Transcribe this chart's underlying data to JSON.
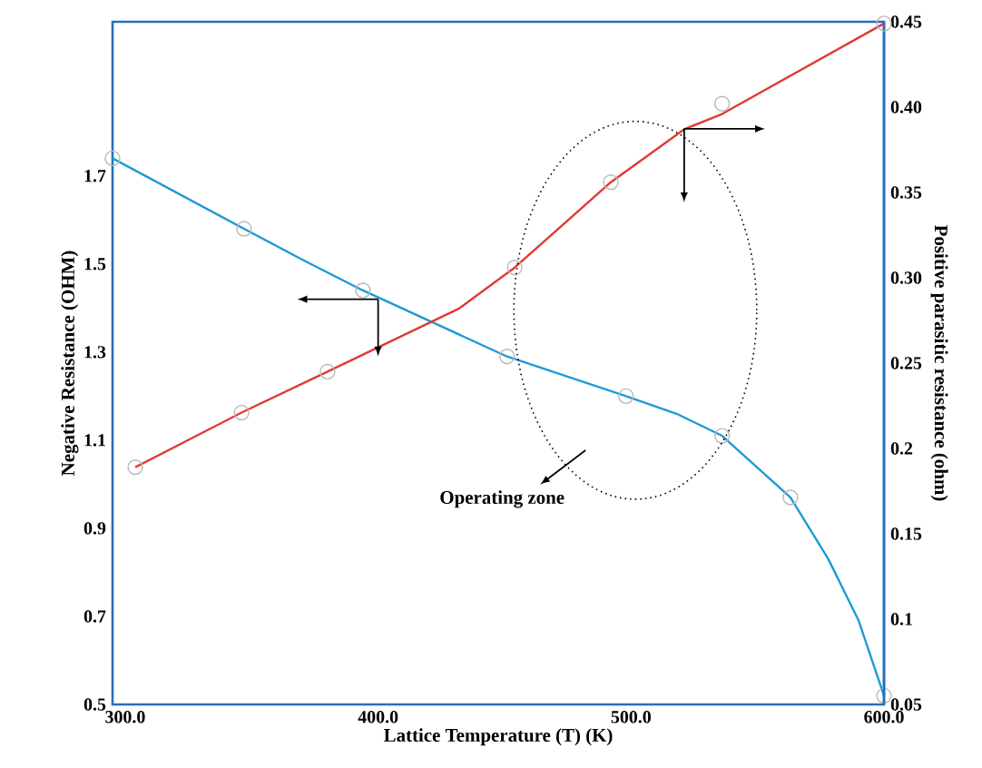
{
  "chart_data": {
    "type": "line",
    "xlabel": "Lattice Temperature (T) (K)",
    "ylabel": "Negative Resistance (OHM)",
    "y2label": "Positive parasitic resistance (ohm)",
    "annotations": [
      "Operating zone"
    ],
    "xlim": [
      295,
      600
    ],
    "xticks": [
      {
        "value": 300,
        "label": "300.0"
      },
      {
        "value": 400,
        "label": "400.0"
      },
      {
        "value": 500,
        "label": "500.0"
      },
      {
        "value": 600,
        "label": "600.0"
      }
    ],
    "ylim": [
      0.5,
      2.05
    ],
    "yticks": [
      0.5,
      0.7,
      0.9,
      1.1,
      1.3,
      1.5,
      1.7
    ],
    "y2lim": [
      0.05,
      0.45
    ],
    "y2ticks": [
      0.05,
      0.1,
      0.15,
      0.2,
      0.25,
      {
        "value": 0.3,
        "label": "0.30"
      },
      0.35,
      {
        "value": 0.4,
        "label": "0.40"
      },
      0.45
    ],
    "grid": false,
    "marker": "none",
    "series": [
      {
        "axis": "y",
        "color": "#1e9ad6",
        "x": [
          295,
          347,
          370,
          394,
          451,
          498,
          518,
          536,
          563,
          578,
          590,
          600
        ],
        "values": [
          1.74,
          1.58,
          1.51,
          1.44,
          1.29,
          1.2,
          1.16,
          1.11,
          0.97,
          0.83,
          0.69,
          0.52
        ]
      },
      {
        "axis": "y2",
        "color": "#e03a33",
        "x": [
          304,
          346,
          380,
          432,
          454,
          492,
          521,
          536,
          600
        ],
        "values": [
          0.189,
          0.221,
          0.245,
          0.282,
          0.306,
          0.356,
          0.387,
          0.396,
          0.449
        ]
      },
      {
        "type": "scatter",
        "axis": "y",
        "marker": "circle",
        "color": "#b8b8b8",
        "x": [
          295,
          347,
          394,
          451,
          498,
          536,
          563,
          600
        ],
        "values": [
          1.74,
          1.58,
          1.44,
          1.29,
          1.2,
          1.11,
          0.97,
          0.52
        ]
      },
      {
        "type": "scatter",
        "axis": "y2",
        "marker": "circle",
        "color": "#b8b8b8",
        "x": [
          304,
          346,
          380,
          454,
          492,
          536,
          600
        ],
        "values": [
          0.189,
          0.221,
          0.245,
          0.306,
          0.356,
          0.402,
          0.449
        ]
      }
    ]
  }
}
